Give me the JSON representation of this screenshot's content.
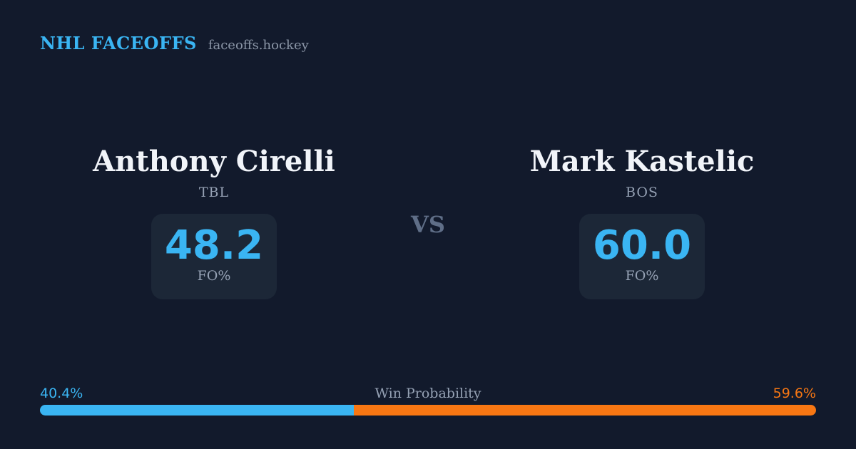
{
  "brand": {
    "title": "NHL FACEOFFS",
    "domain": "faceoffs.hockey"
  },
  "matchup": {
    "vs_label": "VS",
    "players": [
      {
        "name": "Anthony Cirelli",
        "team": "TBL",
        "stat_value": "48.2",
        "stat_label": "FO%"
      },
      {
        "name": "Mark Kastelic",
        "team": "BOS",
        "stat_value": "60.0",
        "stat_label": "FO%"
      }
    ]
  },
  "win_probability": {
    "label": "Win Probability",
    "left_pct_label": "40.4%",
    "right_pct_label": "59.6%",
    "left_value": 40.4,
    "right_value": 59.6
  },
  "chart_data": {
    "type": "bar",
    "title": "Win Probability",
    "categories": [
      "Anthony Cirelli (TBL)",
      "Mark Kastelic (BOS)"
    ],
    "series": [
      {
        "name": "Win Probability %",
        "values": [
          40.4,
          59.6
        ]
      },
      {
        "name": "Faceoff Win %",
        "values": [
          48.2,
          60.0
        ]
      }
    ],
    "layout": "single horizontal stacked bar; blue segment (left player) 40.4%, orange segment (right player) 59.6%; percentage labels at bar ends, title centered above",
    "xlim": [
      0,
      100
    ],
    "grid": false,
    "legend": "none"
  },
  "colors": {
    "background": "#121a2c",
    "card": "#1c2737",
    "accent_blue": "#3ab5f3",
    "accent_orange": "#f87713",
    "text_primary": "#f1f4f9",
    "text_muted": "#95a1b4",
    "text_domain": "#8b96a7",
    "text_vs": "#5f6e87"
  }
}
